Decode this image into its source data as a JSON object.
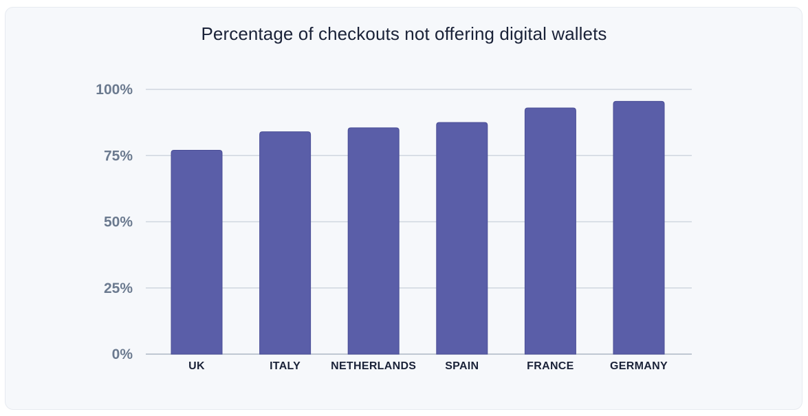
{
  "chart_data": {
    "type": "bar",
    "title": "Percentage of checkouts not offering digital wallets",
    "xlabel": "",
    "ylabel": "",
    "categories": [
      "UK",
      "ITALY",
      "NETHERLANDS",
      "SPAIN",
      "FRANCE",
      "GERMANY"
    ],
    "values": [
      77,
      84,
      85.5,
      87.5,
      93,
      95.5
    ],
    "ylim": [
      0,
      100
    ],
    "yticks": [
      0,
      25,
      50,
      75,
      100
    ],
    "ytick_labels": [
      "0%",
      "25%",
      "50%",
      "75%",
      "100%"
    ],
    "grid": true,
    "bar_color": "#5a5ea8"
  }
}
